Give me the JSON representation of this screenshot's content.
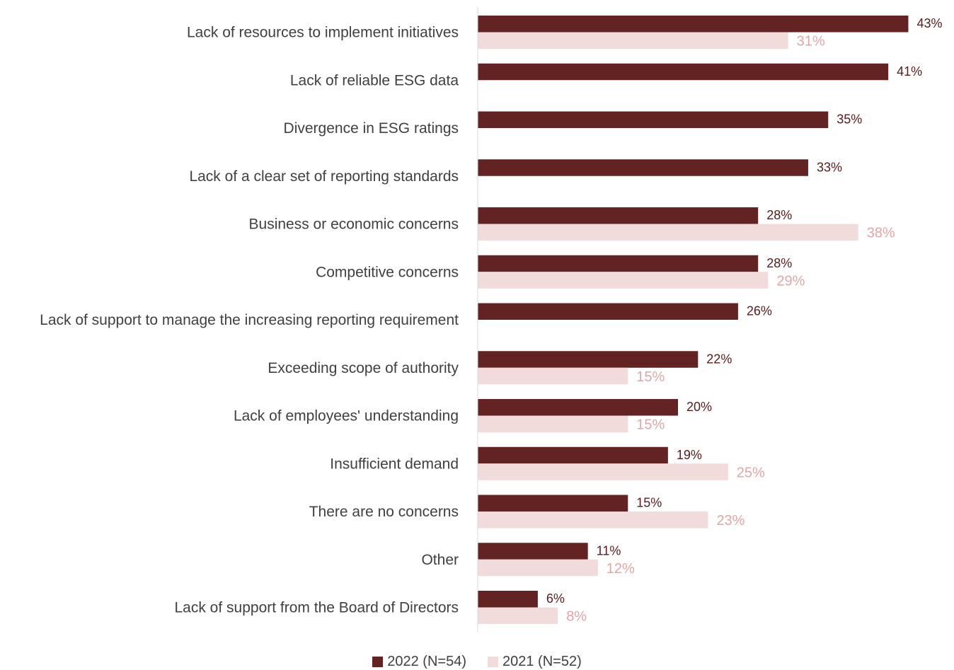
{
  "chart_data": {
    "type": "bar",
    "orientation": "horizontal",
    "categories": [
      "Lack of resources to implement initiatives",
      "Lack of reliable ESG data",
      "Divergence in ESG ratings",
      "Lack of a clear set of reporting standards",
      "Business or economic concerns",
      "Competitive concerns",
      "Lack of support to manage the increasing reporting requirement",
      "Exceeding scope of authority",
      "Lack of employees' understanding",
      "Insufficient demand",
      "There are no concerns",
      "Other",
      "Lack of support from the Board of Directors"
    ],
    "series": [
      {
        "name": "2022 (N=54)",
        "color": "#632323",
        "values": [
          43,
          41,
          35,
          33,
          28,
          28,
          26,
          22,
          20,
          19,
          15,
          11,
          6
        ],
        "labels": [
          "43%",
          "41%",
          "35%",
          "33%",
          "28%",
          "28%",
          "26%",
          "22%",
          "20%",
          "19%",
          "15%",
          "11%",
          "6%"
        ]
      },
      {
        "name": "2021 (N=52)",
        "color": "#f2dcdb",
        "label_color": "#e3a5a5",
        "values": [
          31,
          null,
          null,
          null,
          38,
          29,
          null,
          15,
          15,
          25,
          23,
          12,
          8
        ],
        "labels": [
          "31%",
          "",
          "",
          "",
          "38%",
          "29%",
          "",
          "15%",
          "15%",
          "25%",
          "23%",
          "12%",
          "8%"
        ]
      }
    ],
    "title": "",
    "xlabel": "",
    "ylabel": "",
    "xlim": [
      0,
      45
    ],
    "grid": false,
    "legend_position": "bottom"
  },
  "legend": {
    "items": [
      {
        "label": "2022 (N=54)",
        "color": "#632323"
      },
      {
        "label": "2021 (N=52)",
        "color": "#f2dcdb"
      }
    ]
  },
  "colors": {
    "axis": "#d9d9d9",
    "category_text": "#404040"
  }
}
